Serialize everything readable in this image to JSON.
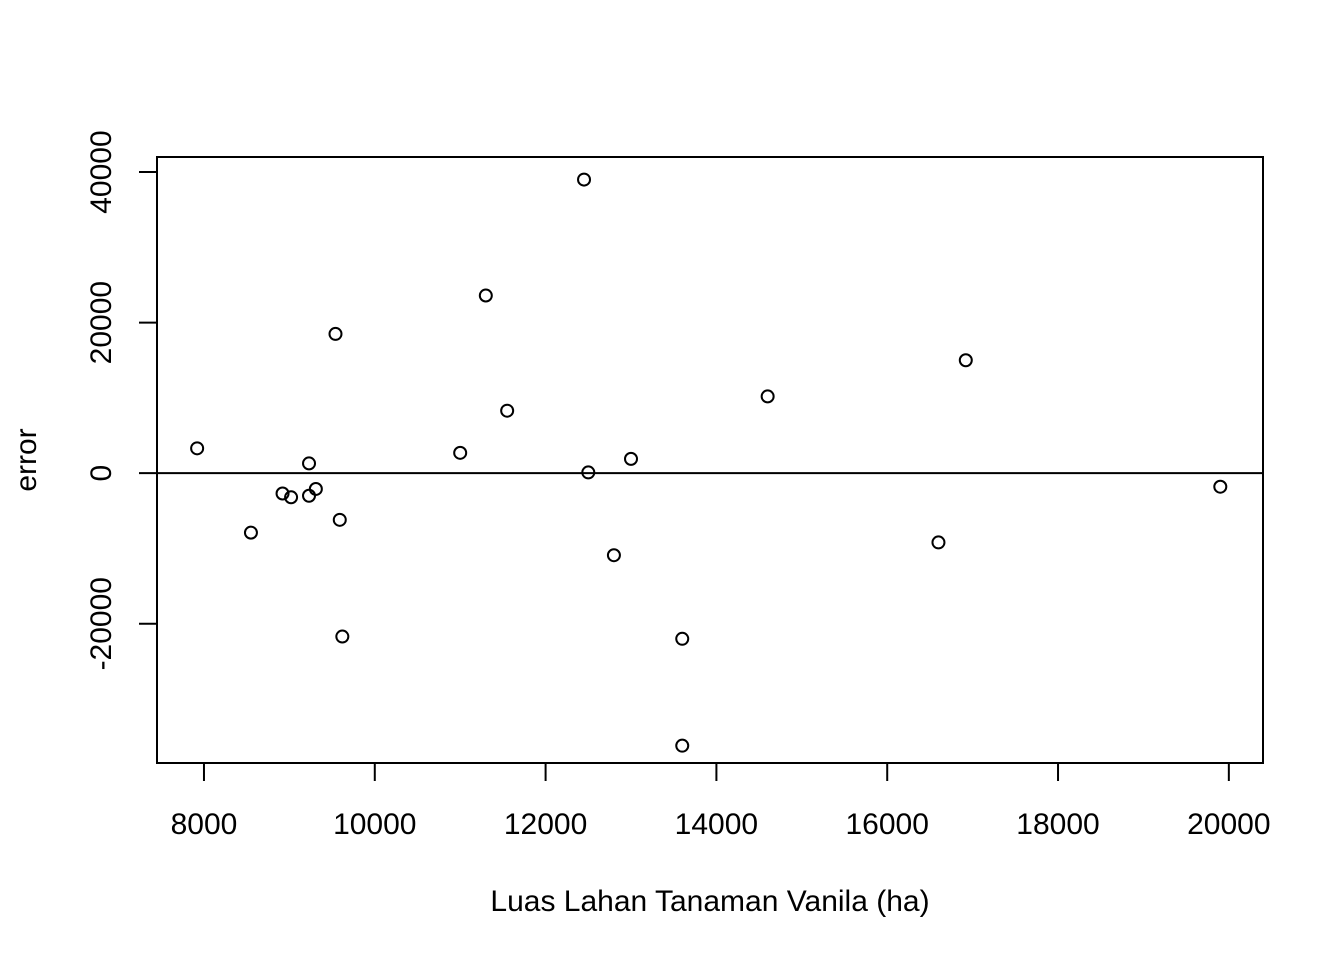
{
  "chart_data": {
    "type": "scatter",
    "xlabel": "Luas Lahan Tanaman Vanila (ha)",
    "ylabel": "error",
    "xlim": [
      7450,
      20400
    ],
    "ylim": [
      -38500,
      42000
    ],
    "x_ticks": [
      8000,
      10000,
      12000,
      14000,
      16000,
      18000,
      20000
    ],
    "x_tick_labels": [
      "8000",
      "10000",
      "12000",
      "14000",
      "16000",
      "18000",
      "20000"
    ],
    "y_ticks": [
      -20000,
      0,
      20000,
      40000
    ],
    "y_tick_labels": [
      "-20000",
      "0",
      "20000",
      "40000"
    ],
    "reference_line_y": 0,
    "grid": false,
    "legend": "none",
    "marker": "open-circle",
    "points": [
      {
        "x": 7920,
        "y": 3300
      },
      {
        "x": 8550,
        "y": -7900
      },
      {
        "x": 8920,
        "y": -2700
      },
      {
        "x": 9020,
        "y": -3200
      },
      {
        "x": 9230,
        "y": -3000
      },
      {
        "x": 9230,
        "y": 1300
      },
      {
        "x": 9310,
        "y": -2100
      },
      {
        "x": 9540,
        "y": 18500
      },
      {
        "x": 9590,
        "y": -6200
      },
      {
        "x": 9620,
        "y": -21700
      },
      {
        "x": 11000,
        "y": 2700
      },
      {
        "x": 11300,
        "y": 23600
      },
      {
        "x": 11550,
        "y": 8300
      },
      {
        "x": 12450,
        "y": 39000
      },
      {
        "x": 12500,
        "y": 100
      },
      {
        "x": 12800,
        "y": -10900
      },
      {
        "x": 13000,
        "y": 1900
      },
      {
        "x": 13600,
        "y": -22000
      },
      {
        "x": 13600,
        "y": -36200
      },
      {
        "x": 14600,
        "y": 10200
      },
      {
        "x": 16600,
        "y": -9200
      },
      {
        "x": 16920,
        "y": 15000
      },
      {
        "x": 19900,
        "y": -1800
      }
    ]
  }
}
